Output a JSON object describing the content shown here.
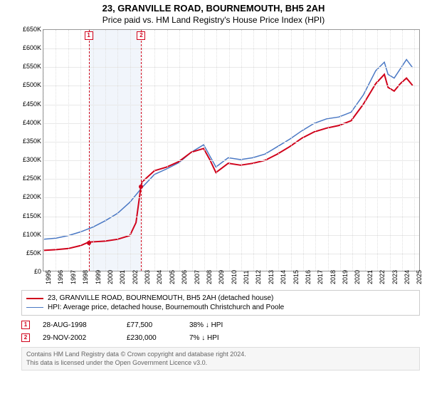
{
  "title": "23, GRANVILLE ROAD, BOURNEMOUTH, BH5 2AH",
  "subtitle": "Price paid vs. HM Land Registry's House Price Index (HPI)",
  "chart": {
    "type": "line",
    "background_color": "#ffffff",
    "grid_color": "#e8e8e8",
    "border_color": "#999999",
    "band_color": "#e8eef8",
    "xlim": [
      1995,
      2025.5
    ],
    "ylim": [
      0,
      650000
    ],
    "ytick_step": 50000,
    "y_ticks": [
      "£0",
      "£50K",
      "£100K",
      "£150K",
      "£200K",
      "£250K",
      "£300K",
      "£350K",
      "£400K",
      "£450K",
      "£500K",
      "£550K",
      "£600K",
      "£650K"
    ],
    "x_ticks": [
      1995,
      1996,
      1997,
      1998,
      1999,
      2000,
      2001,
      2002,
      2003,
      2004,
      2005,
      2006,
      2007,
      2008,
      2009,
      2010,
      2011,
      2012,
      2013,
      2014,
      2015,
      2016,
      2017,
      2018,
      2019,
      2020,
      2021,
      2022,
      2023,
      2024,
      2025
    ],
    "highlight_band": {
      "start": 1998.66,
      "end": 2002.91
    },
    "series": [
      {
        "name": "property",
        "color": "#d0021b",
        "line_width": 2,
        "label": "23, GRANVILLE ROAD, BOURNEMOUTH, BH5 2AH (detached house)",
        "data": [
          [
            1995,
            55000
          ],
          [
            1996,
            57000
          ],
          [
            1997,
            60000
          ],
          [
            1998,
            68000
          ],
          [
            1998.66,
            77500
          ],
          [
            1999,
            78000
          ],
          [
            2000,
            80000
          ],
          [
            2001,
            85000
          ],
          [
            2002,
            95000
          ],
          [
            2002.5,
            130000
          ],
          [
            2002.91,
            230000
          ],
          [
            2003,
            240000
          ],
          [
            2004,
            270000
          ],
          [
            2005,
            280000
          ],
          [
            2006,
            295000
          ],
          [
            2007,
            320000
          ],
          [
            2008,
            330000
          ],
          [
            2008.5,
            300000
          ],
          [
            2009,
            265000
          ],
          [
            2010,
            290000
          ],
          [
            2011,
            285000
          ],
          [
            2012,
            290000
          ],
          [
            2013,
            298000
          ],
          [
            2014,
            315000
          ],
          [
            2015,
            335000
          ],
          [
            2016,
            358000
          ],
          [
            2017,
            375000
          ],
          [
            2018,
            385000
          ],
          [
            2019,
            392000
          ],
          [
            2020,
            405000
          ],
          [
            2021,
            450000
          ],
          [
            2022,
            505000
          ],
          [
            2022.7,
            530000
          ],
          [
            2023,
            495000
          ],
          [
            2023.5,
            485000
          ],
          [
            2024,
            505000
          ],
          [
            2024.5,
            520000
          ],
          [
            2025,
            500000
          ]
        ]
      },
      {
        "name": "hpi",
        "color": "#4a78c4",
        "line_width": 1.5,
        "label": "HPI: Average price, detached house, Bournemouth Christchurch and Poole",
        "data": [
          [
            1995,
            85000
          ],
          [
            1996,
            88000
          ],
          [
            1997,
            95000
          ],
          [
            1998,
            105000
          ],
          [
            1999,
            118000
          ],
          [
            2000,
            135000
          ],
          [
            2001,
            155000
          ],
          [
            2002,
            185000
          ],
          [
            2003,
            225000
          ],
          [
            2004,
            260000
          ],
          [
            2005,
            275000
          ],
          [
            2006,
            292000
          ],
          [
            2007,
            320000
          ],
          [
            2008,
            340000
          ],
          [
            2008.5,
            310000
          ],
          [
            2009,
            280000
          ],
          [
            2010,
            305000
          ],
          [
            2011,
            300000
          ],
          [
            2012,
            305000
          ],
          [
            2013,
            315000
          ],
          [
            2014,
            335000
          ],
          [
            2015,
            355000
          ],
          [
            2016,
            378000
          ],
          [
            2017,
            398000
          ],
          [
            2018,
            410000
          ],
          [
            2019,
            415000
          ],
          [
            2020,
            428000
          ],
          [
            2021,
            475000
          ],
          [
            2022,
            540000
          ],
          [
            2022.7,
            563000
          ],
          [
            2023,
            530000
          ],
          [
            2023.5,
            520000
          ],
          [
            2024,
            545000
          ],
          [
            2024.5,
            570000
          ],
          [
            2025,
            548000
          ]
        ]
      }
    ],
    "sale_markers": [
      {
        "n": "1",
        "year": 1998.66,
        "color": "#d0021b",
        "dot_y": 77500
      },
      {
        "n": "2",
        "year": 2002.91,
        "color": "#d0021b",
        "dot_y": 230000
      }
    ]
  },
  "legend": {
    "rows": [
      {
        "color": "#d0021b",
        "width": 2,
        "label": "23, GRANVILLE ROAD, BOURNEMOUTH, BH5 2AH (detached house)"
      },
      {
        "color": "#4a78c4",
        "width": 1.5,
        "label": "HPI: Average price, detached house, Bournemouth Christchurch and Poole"
      }
    ]
  },
  "marker_info": [
    {
      "n": "1",
      "color": "#d0021b",
      "date": "28-AUG-1998",
      "price": "£77,500",
      "pct": "38% ↓ HPI"
    },
    {
      "n": "2",
      "color": "#d0021b",
      "date": "29-NOV-2002",
      "price": "£230,000",
      "pct": "7% ↓ HPI"
    }
  ],
  "footer": {
    "line1": "Contains HM Land Registry data © Crown copyright and database right 2024.",
    "line2": "This data is licensed under the Open Government Licence v3.0."
  }
}
